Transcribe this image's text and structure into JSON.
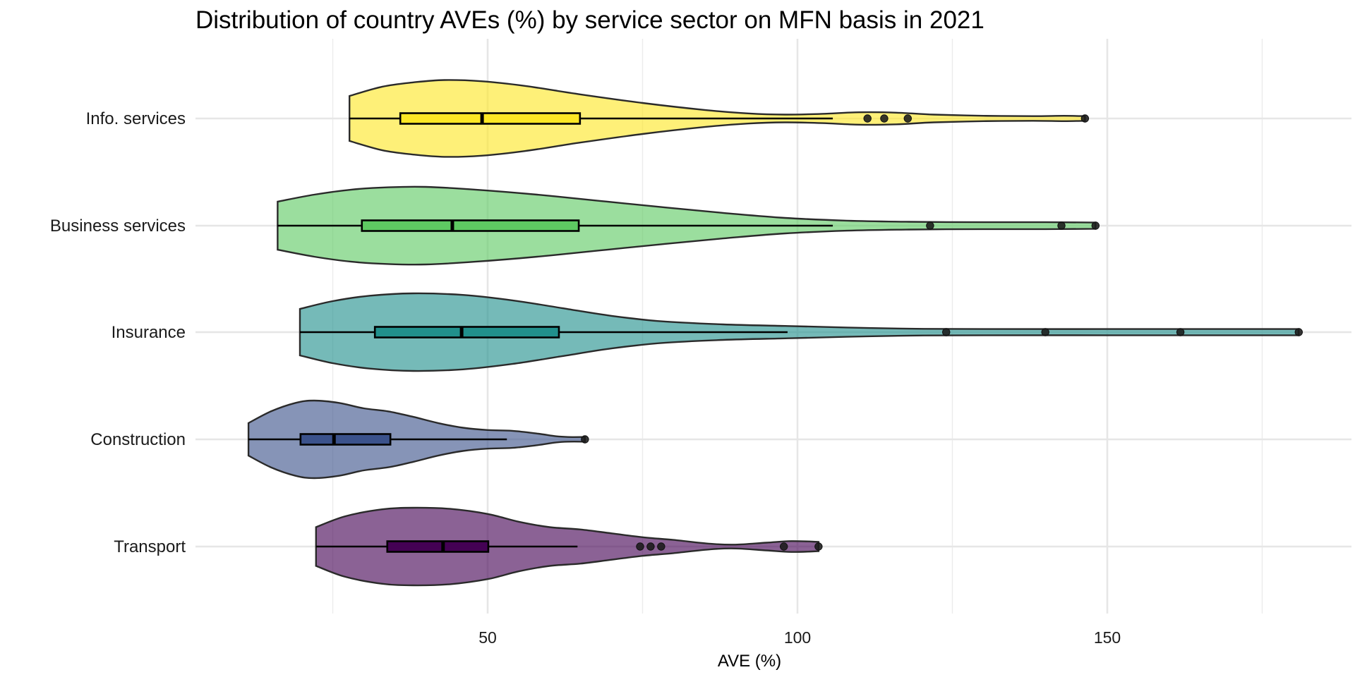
{
  "chart_data": {
    "type": "violin",
    "title": "Distribution of country AVEs (%) by service sector on MFN basis in 2021",
    "xlabel": "AVE (%)",
    "ylabel": "",
    "xlim": [
      3,
      188
    ],
    "x_ticks": [
      50,
      100,
      150
    ],
    "x_minor_ticks": [
      25,
      75,
      125,
      175
    ],
    "x_tick_labels": [
      "50",
      "100",
      "150"
    ],
    "grid": true,
    "legend": "none",
    "categories": [
      "Info. services",
      "Business services",
      "Insurance",
      "Construction",
      "Transport"
    ],
    "series": [
      {
        "name": "Info. services",
        "color": "#FDE725",
        "box_color": "#FDE725",
        "min": 27.7,
        "q1": 35.9,
        "median": 49.1,
        "q3": 64.9,
        "whisker_high": 105.7,
        "outliers": [
          111.3,
          114.0,
          117.8,
          146.4
        ],
        "max": 146.4,
        "density": [
          [
            27.7,
            0.58
          ],
          [
            33,
            0.82
          ],
          [
            38,
            0.93
          ],
          [
            43,
            0.99
          ],
          [
            49,
            0.96
          ],
          [
            56,
            0.84
          ],
          [
            65,
            0.62
          ],
          [
            75,
            0.4
          ],
          [
            85,
            0.22
          ],
          [
            92,
            0.13
          ],
          [
            98,
            0.1
          ],
          [
            104,
            0.12
          ],
          [
            110,
            0.16
          ],
          [
            116,
            0.15
          ],
          [
            122,
            0.1
          ],
          [
            130,
            0.07
          ],
          [
            138,
            0.06
          ],
          [
            143,
            0.07
          ],
          [
            146.4,
            0.06
          ]
        ]
      },
      {
        "name": "Business services",
        "color": "#5EC962",
        "box_color": "#5EC962",
        "min": 16.1,
        "q1": 29.7,
        "median": 44.3,
        "q3": 64.7,
        "whisker_high": 105.7,
        "outliers": [
          121.4,
          142.6,
          148.1
        ],
        "max": 148.1,
        "density": [
          [
            16.1,
            0.62
          ],
          [
            22,
            0.8
          ],
          [
            28,
            0.93
          ],
          [
            34,
            0.99
          ],
          [
            40,
            1.0
          ],
          [
            48,
            0.93
          ],
          [
            58,
            0.8
          ],
          [
            68,
            0.64
          ],
          [
            78,
            0.48
          ],
          [
            88,
            0.33
          ],
          [
            98,
            0.2
          ],
          [
            108,
            0.13
          ],
          [
            118,
            0.1
          ],
          [
            130,
            0.09
          ],
          [
            140,
            0.09
          ],
          [
            148.1,
            0.08
          ]
        ]
      },
      {
        "name": "Insurance",
        "color": "#21908C",
        "box_color": "#21908C",
        "min": 19.7,
        "q1": 31.8,
        "median": 45.8,
        "q3": 61.5,
        "whisker_high": 98.4,
        "outliers": [
          124.0,
          140.0,
          161.8,
          180.9
        ],
        "max": 180.9,
        "density": [
          [
            19.7,
            0.6
          ],
          [
            25,
            0.8
          ],
          [
            31,
            0.94
          ],
          [
            38,
            1.0
          ],
          [
            46,
            0.96
          ],
          [
            54,
            0.82
          ],
          [
            62,
            0.62
          ],
          [
            70,
            0.42
          ],
          [
            78,
            0.28
          ],
          [
            88,
            0.2
          ],
          [
            98,
            0.16
          ],
          [
            108,
            0.12
          ],
          [
            118,
            0.09
          ],
          [
            130,
            0.08
          ],
          [
            150,
            0.08
          ],
          [
            170,
            0.08
          ],
          [
            180.9,
            0.08
          ]
        ]
      },
      {
        "name": "Construction",
        "color": "#3B528B",
        "box_color": "#3B528B",
        "min": 11.4,
        "q1": 19.8,
        "median": 25.2,
        "q3": 34.3,
        "whisker_high": 53.1,
        "outliers": [
          65.7
        ],
        "max": 65.7,
        "density": [
          [
            11.4,
            0.42
          ],
          [
            15,
            0.72
          ],
          [
            19,
            0.94
          ],
          [
            22,
            1.0
          ],
          [
            26,
            0.94
          ],
          [
            30,
            0.8
          ],
          [
            34,
            0.72
          ],
          [
            38,
            0.58
          ],
          [
            42,
            0.42
          ],
          [
            46,
            0.3
          ],
          [
            50,
            0.24
          ],
          [
            54,
            0.22
          ],
          [
            58,
            0.15
          ],
          [
            61,
            0.08
          ],
          [
            63,
            0.06
          ],
          [
            65.7,
            0.06
          ]
        ]
      },
      {
        "name": "Transport",
        "color": "#440154",
        "box_color": "#440154",
        "min": 22.3,
        "q1": 33.8,
        "median": 42.8,
        "q3": 50.1,
        "whisker_high": 64.5,
        "outliers": [
          74.6,
          76.3,
          78.0,
          97.8,
          103.4
        ],
        "max": 103.4,
        "density": [
          [
            22.3,
            0.5
          ],
          [
            27,
            0.78
          ],
          [
            33,
            0.96
          ],
          [
            38,
            1.0
          ],
          [
            44,
            0.97
          ],
          [
            50,
            0.84
          ],
          [
            55,
            0.64
          ],
          [
            60,
            0.5
          ],
          [
            65,
            0.44
          ],
          [
            70,
            0.34
          ],
          [
            75,
            0.24
          ],
          [
            80,
            0.17
          ],
          [
            86,
            0.07
          ],
          [
            90,
            0.05
          ],
          [
            95,
            0.1
          ],
          [
            99,
            0.14
          ],
          [
            103.4,
            0.12
          ]
        ]
      }
    ]
  }
}
